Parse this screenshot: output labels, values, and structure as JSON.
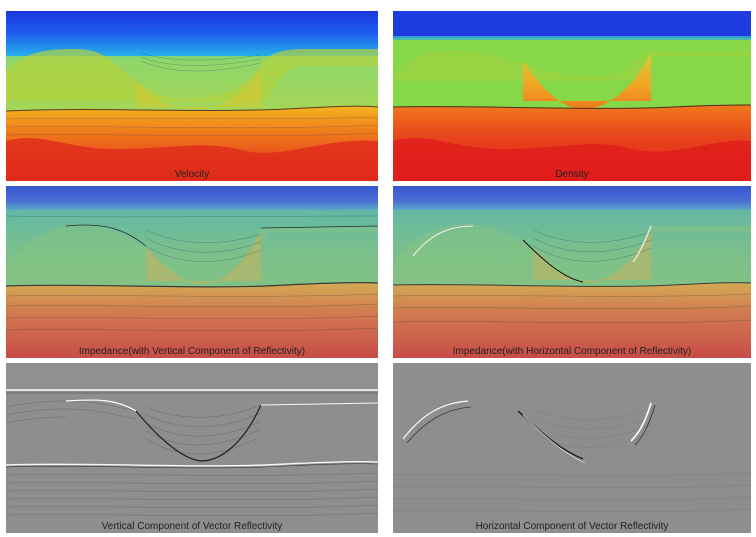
{
  "panels": [
    {
      "id": "velocity",
      "caption": "Velocity"
    },
    {
      "id": "density",
      "caption": "Density"
    },
    {
      "id": "impedance-vertical",
      "caption": "Impedance(with Vertical Component of Reflectivity)"
    },
    {
      "id": "impedance-horizontal",
      "caption": "Impedance(with Horizontal Component of Reflectivity)"
    },
    {
      "id": "vertical-reflectivity",
      "caption": "Vertical Component of Vector Reflectivity"
    },
    {
      "id": "horizontal-reflectivity",
      "caption": "Horizontal Component of Vector Reflectivity"
    }
  ],
  "colors": {
    "water": "#1c3cdc",
    "layer_green": "#b6d63a",
    "density_green": "#84d848",
    "deep_red": "#e0261c",
    "orange": "#f08a1c",
    "gray_bg": "#8c8c8c"
  }
}
